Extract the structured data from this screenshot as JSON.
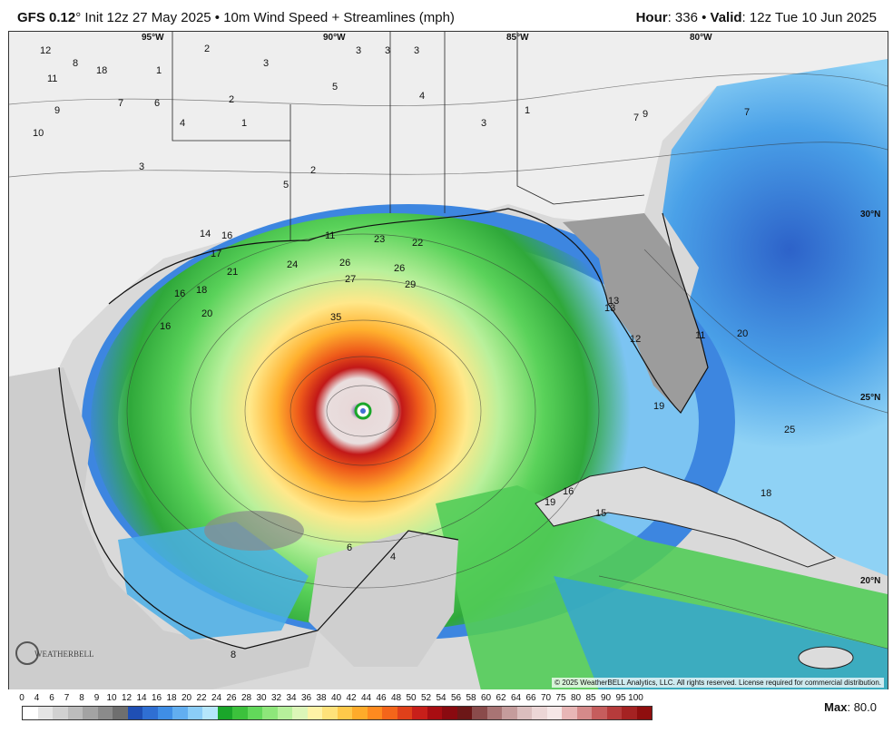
{
  "header": {
    "model": "GFS 0.12",
    "degree": "°",
    "init": " Init 12z 27 May 2025 • 10m Wind Speed + Streamlines (mph)",
    "hour_label": "Hour",
    "hour_value": ": 336 •",
    "valid_label": " Valid",
    "valid_value": ": 12z Tue 10 Jun 2025"
  },
  "map": {
    "lon_labels": [
      "95°W",
      "90°W",
      "85°W",
      "80°W"
    ],
    "lat_labels": [
      "30°N",
      "25°N",
      "20°N"
    ],
    "copyright": "© 2025 WeatherBELL Analytics, LLC. All rights reserved. License required for commercial distribution.",
    "logo_text": "WEATHERBELL",
    "wind_labels": [
      "12",
      "8",
      "18",
      "2",
      "1",
      "2",
      "3",
      "9",
      "11",
      "5",
      "7",
      "6",
      "10",
      "4",
      "3",
      "1",
      "5",
      "2",
      "3",
      "3",
      "3",
      "3",
      "1",
      "4",
      "7",
      "14",
      "16",
      "17",
      "21",
      "23",
      "24",
      "26",
      "27",
      "26",
      "29",
      "22",
      "35",
      "16",
      "20",
      "18",
      "16",
      "13",
      "12",
      "19",
      "20",
      "11",
      "16",
      "15",
      "19",
      "9",
      "6",
      "4",
      "8",
      "11",
      "7",
      "18",
      "13",
      "25"
    ]
  },
  "legend": {
    "ticks": [
      "0",
      "4",
      "6",
      "7",
      "8",
      "9",
      "10",
      "12",
      "14",
      "16",
      "18",
      "20",
      "22",
      "24",
      "26",
      "28",
      "30",
      "32",
      "34",
      "36",
      "38",
      "40",
      "42",
      "44",
      "46",
      "48",
      "50",
      "52",
      "54",
      "56",
      "58",
      "60",
      "62",
      "64",
      "66",
      "70",
      "75",
      "80",
      "85",
      "90",
      "95",
      "100"
    ],
    "colors": [
      "#ffffff",
      "#e5e5e5",
      "#d1d1d1",
      "#bcbcbc",
      "#a3a3a3",
      "#8b8b8b",
      "#6f6f6f",
      "#1f4fb4",
      "#2f6fd3",
      "#3f8ee6",
      "#62aef0",
      "#8bcdf7",
      "#b5e6fb",
      "#1aa62a",
      "#3cc13c",
      "#62d85a",
      "#8ee67a",
      "#b6f09b",
      "#dcf6b8",
      "#fff3a6",
      "#ffe27a",
      "#ffc94a",
      "#ffab2a",
      "#ff8a1f",
      "#f4651a",
      "#e0401a",
      "#c81f1a",
      "#a80d12",
      "#8a0a10",
      "#6c1717",
      "#8a4b4b",
      "#a87474",
      "#c59c9c",
      "#dbbebe",
      "#ecd6d6",
      "#f6e7e7",
      "#e8b6b6",
      "#d58a8a",
      "#c65d5d",
      "#b63b3b",
      "#a52222",
      "#8f0e0e"
    ],
    "max_label": "Max",
    "max_value": ": 80.0"
  }
}
